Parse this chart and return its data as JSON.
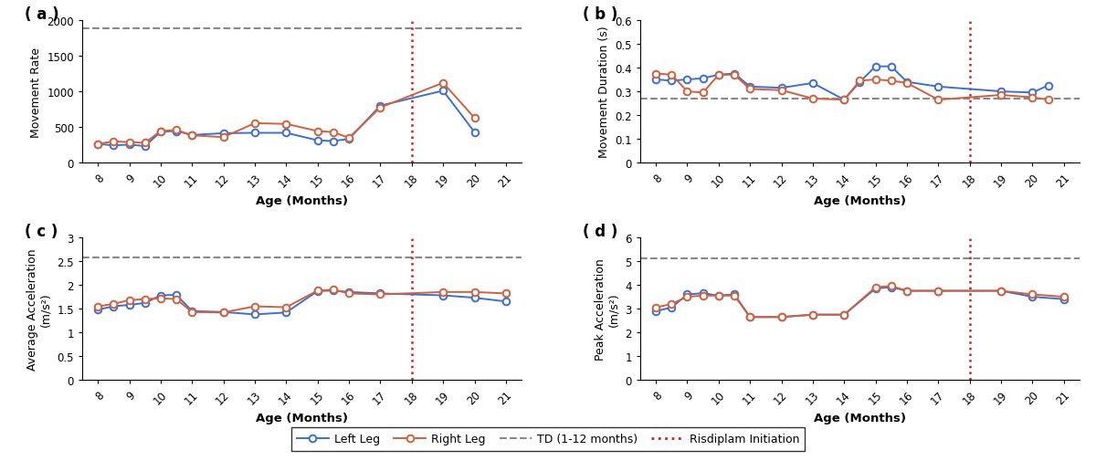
{
  "ages_La": [
    8,
    8.5,
    9,
    9.5,
    10,
    10.5,
    11,
    12,
    13,
    14,
    15,
    15.5,
    16,
    17,
    19,
    20,
    21
  ],
  "vals_La": [
    265,
    245,
    255,
    235,
    435,
    445,
    390,
    415,
    420,
    420,
    315,
    305,
    335,
    800,
    1010,
    430,
    null
  ],
  "ages_Ra": [
    8,
    8.5,
    9,
    9.5,
    10,
    10.5,
    11,
    12,
    13,
    14,
    15,
    15.5,
    16,
    17,
    19,
    20,
    21
  ],
  "vals_Ra": [
    265,
    300,
    290,
    280,
    445,
    460,
    385,
    360,
    555,
    545,
    445,
    430,
    350,
    775,
    1120,
    630,
    null
  ],
  "ages_Lb": [
    8,
    8.5,
    9,
    9.5,
    10,
    10.5,
    11,
    12,
    13,
    14,
    14.5,
    15,
    15.5,
    16,
    17,
    19,
    20,
    20.5,
    21
  ],
  "vals_Lb": [
    0.35,
    0.345,
    0.35,
    0.355,
    0.37,
    0.375,
    0.32,
    0.315,
    0.335,
    0.265,
    0.34,
    0.405,
    0.405,
    0.34,
    0.32,
    0.3,
    0.295,
    0.325,
    null
  ],
  "ages_Rb": [
    8,
    8.5,
    9,
    9.5,
    10,
    10.5,
    11,
    12,
    13,
    14,
    14.5,
    15,
    15.5,
    16,
    17,
    19,
    20,
    20.5,
    21
  ],
  "vals_Rb": [
    0.375,
    0.37,
    0.3,
    0.295,
    0.37,
    0.37,
    0.31,
    0.305,
    0.27,
    0.265,
    0.345,
    0.35,
    0.345,
    0.335,
    0.265,
    0.285,
    0.275,
    0.265,
    null
  ],
  "ages_Lc": [
    8,
    8.5,
    9,
    9.5,
    10,
    10.5,
    11,
    12,
    13,
    14,
    15,
    15.5,
    16,
    17,
    19,
    20,
    21
  ],
  "vals_Lc": [
    1.48,
    1.55,
    1.58,
    1.62,
    1.78,
    1.79,
    1.45,
    1.43,
    1.38,
    1.42,
    1.87,
    1.88,
    1.85,
    1.82,
    1.78,
    1.73,
    1.65
  ],
  "ages_Rc": [
    8,
    8.5,
    9,
    9.5,
    10,
    10.5,
    11,
    12,
    13,
    14,
    15,
    15.5,
    16,
    17,
    19,
    20,
    21
  ],
  "vals_Rc": [
    1.55,
    1.6,
    1.68,
    1.7,
    1.72,
    1.7,
    1.43,
    1.42,
    1.55,
    1.53,
    1.88,
    1.9,
    1.82,
    1.8,
    1.85,
    1.85,
    1.82
  ],
  "ages_Ld": [
    8,
    8.5,
    9,
    9.5,
    10,
    10.5,
    11,
    12,
    13,
    14,
    15,
    15.5,
    16,
    17,
    19,
    20,
    21
  ],
  "vals_Ld": [
    2.9,
    3.05,
    3.6,
    3.65,
    3.55,
    3.6,
    2.65,
    2.65,
    2.75,
    2.75,
    3.85,
    3.9,
    3.75,
    3.75,
    3.75,
    3.5,
    3.4
  ],
  "ages_Rd": [
    8,
    8.5,
    9,
    9.5,
    10,
    10.5,
    11,
    12,
    13,
    14,
    15,
    15.5,
    16,
    17,
    19,
    20,
    21
  ],
  "vals_Rd": [
    3.05,
    3.2,
    3.5,
    3.55,
    3.55,
    3.55,
    2.65,
    2.65,
    2.75,
    2.75,
    3.9,
    3.95,
    3.75,
    3.75,
    3.75,
    3.6,
    3.5
  ],
  "td_a": 1880,
  "td_b": 0.27,
  "td_c": 2.57,
  "td_d": 5.1,
  "risdiplam_x": 18,
  "blue": "#3b6fd4",
  "orange": "#d45f3b",
  "gray_dash": "#888888",
  "red_dot": "#cc2222",
  "xlim": [
    7.5,
    21.5
  ],
  "xticks": [
    8,
    9,
    10,
    11,
    12,
    13,
    14,
    15,
    16,
    17,
    18,
    19,
    20,
    21
  ],
  "ylim_a": [
    0,
    2000
  ],
  "yticks_a": [
    0,
    500,
    1000,
    1500,
    2000
  ],
  "ylim_b": [
    0,
    0.6
  ],
  "yticks_b": [
    0,
    0.1,
    0.2,
    0.3,
    0.4,
    0.5,
    0.6
  ],
  "ylim_c": [
    0,
    3
  ],
  "yticks_c": [
    0,
    0.5,
    1.0,
    1.5,
    2.0,
    2.5,
    3.0
  ],
  "ylim_d": [
    0,
    6
  ],
  "yticks_d": [
    0,
    1,
    2,
    3,
    4,
    5,
    6
  ],
  "ylabel_a": "Movement Rate",
  "ylabel_b": "Movement Duration (s)",
  "ylabel_c": "Average Acceleration\n(m/s²)",
  "ylabel_d": "Peak Acceleration\n(m/s²)",
  "xlabel": "Age (Months)",
  "label_left": "Left Leg",
  "label_right": "Right Leg",
  "label_td": "TD (1-12 months)",
  "label_risdiplam": "Risdiplam Initiation"
}
